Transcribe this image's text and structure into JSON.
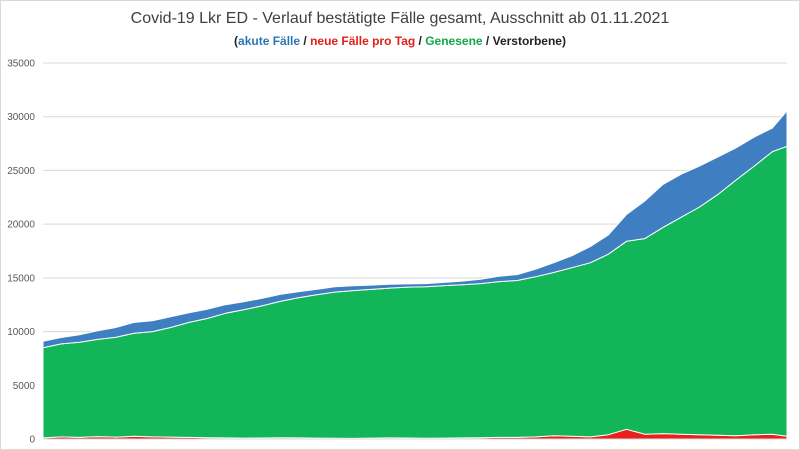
{
  "chart_data": {
    "type": "area",
    "stacked": true,
    "title": "Covid-19 Lkr ED - Verlauf bestätigte Fälle gesamt, Ausschnitt ab 01.11.2021",
    "subtitle_parts": [
      "akute Fälle",
      "neue Fälle pro Tag",
      "Genesene",
      "Verstorbene"
    ],
    "ylim": [
      0,
      35000
    ],
    "yticks": [
      "0",
      "5000",
      "10000",
      "15000",
      "20000",
      "25000",
      "30000",
      "35000"
    ],
    "grid": true,
    "x": [
      0,
      5,
      10,
      15,
      20,
      25,
      30,
      35,
      40,
      45,
      50,
      55,
      60,
      65,
      70,
      75,
      80,
      85,
      90,
      95,
      100,
      105,
      110,
      115,
      120,
      125,
      130,
      135,
      140,
      145,
      150,
      155,
      160,
      165,
      170,
      175,
      180,
      185,
      190,
      195,
      200,
      204
    ],
    "series": [
      {
        "name": "neue Fälle pro Tag",
        "color": "#e8211d",
        "values": [
          100,
          200,
          150,
          220,
          180,
          250,
          200,
          180,
          150,
          120,
          100,
          80,
          90,
          110,
          100,
          80,
          70,
          60,
          80,
          100,
          90,
          70,
          80,
          100,
          120,
          150,
          150,
          200,
          300,
          250,
          200,
          400,
          900,
          450,
          500,
          450,
          400,
          350,
          300,
          400,
          450,
          250
        ]
      },
      {
        "name": "Genesene",
        "color": "#12b557",
        "values": [
          8400,
          8650,
          8850,
          9050,
          9300,
          9600,
          9800,
          10200,
          10700,
          11100,
          11600,
          11950,
          12300,
          12700,
          13050,
          13350,
          13600,
          13750,
          13850,
          13950,
          14050,
          14100,
          14200,
          14250,
          14350,
          14500,
          14600,
          14900,
          15200,
          15700,
          16200,
          16800,
          17500,
          18200,
          19200,
          20200,
          21200,
          22400,
          23800,
          25000,
          26300,
          27000
        ]
      },
      {
        "name": "akute Fälle",
        "color": "#3f7fc1",
        "values": [
          600,
          600,
          700,
          800,
          900,
          1000,
          1000,
          1000,
          900,
          850,
          800,
          750,
          700,
          650,
          550,
          500,
          500,
          450,
          400,
          350,
          300,
          300,
          300,
          350,
          400,
          500,
          550,
          700,
          900,
          1100,
          1500,
          1800,
          2500,
          3500,
          4000,
          4000,
          3800,
          3500,
          3000,
          2700,
          2200,
          3300
        ]
      }
    ]
  }
}
